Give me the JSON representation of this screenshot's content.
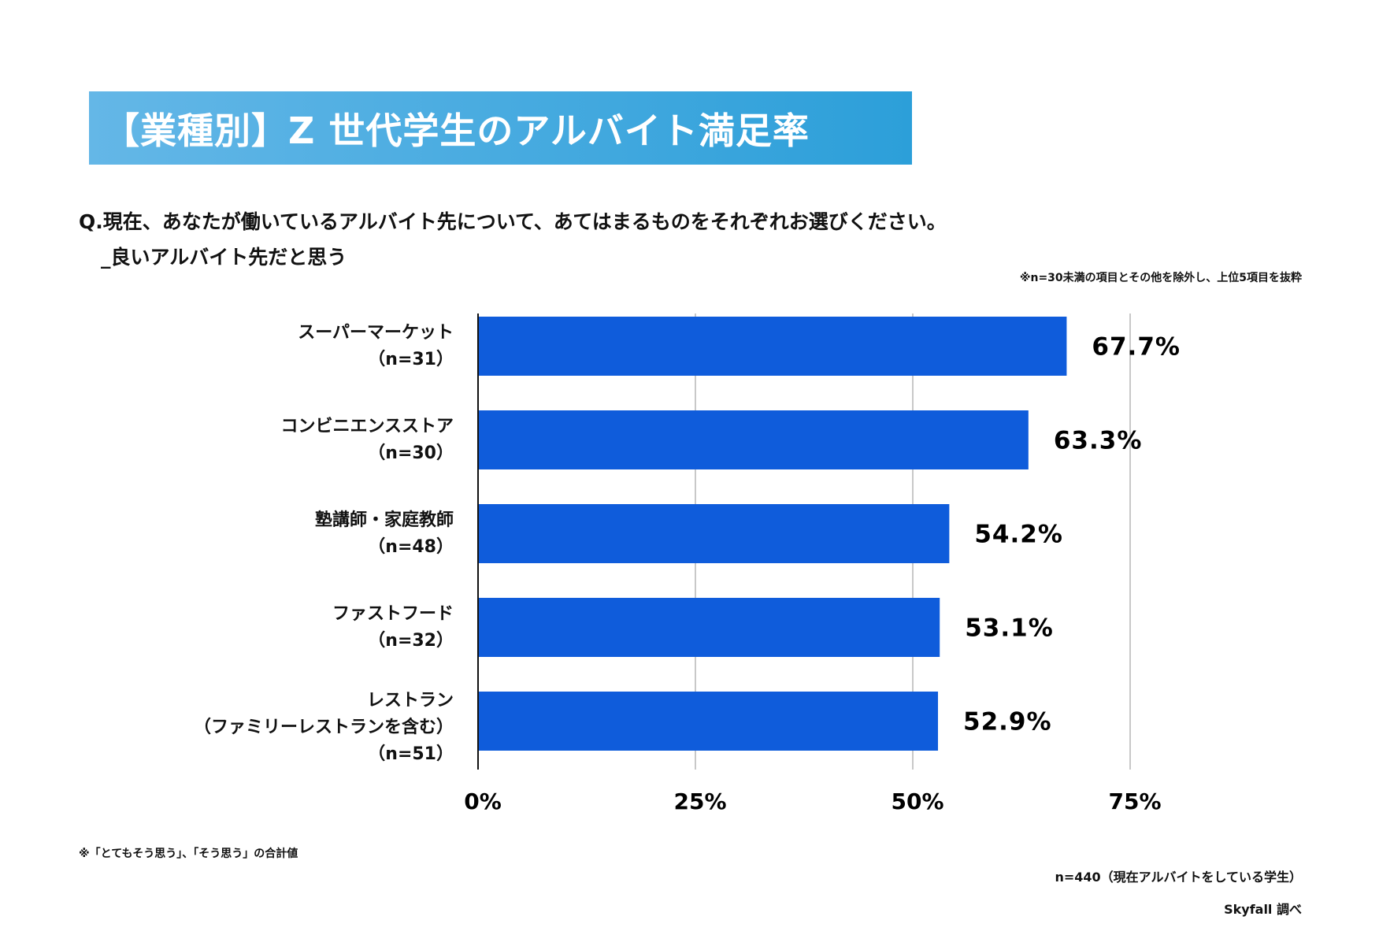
{
  "title": "【業種別】Z 世代学生のアルバイト満足率",
  "question_line1": "Q.現在、あなたが働いているアルバイト先について、あてはまるものをそれぞれお選びください。",
  "question_line2": "_良いアルバイト先だと思う",
  "note_top": "※n=30未満の項目とその他を除外し、上位5項目を抜粋",
  "footnote": "※「とてもそう思う」、「そう思う」の合計値",
  "sample": "n=440（現在アルバイトをしている学生）",
  "source": "Skyfall 調べ",
  "colors": {
    "bar": "#0f5cdb",
    "grid": "#c8c8c8",
    "title_start": "#64b7e7",
    "title_end": "#2c9fd9"
  },
  "chart_data": {
    "type": "bar",
    "orientation": "horizontal",
    "categories": [
      {
        "lines": [
          "スーパーマーケット",
          "（n=31）"
        ]
      },
      {
        "lines": [
          "コンビニエンスストア",
          "（n=30）"
        ]
      },
      {
        "lines": [
          "塾講師・家庭教師",
          "（n=48）"
        ]
      },
      {
        "lines": [
          "ファストフード",
          "（n=32）"
        ]
      },
      {
        "lines": [
          "レストラン",
          "（ファミリーレストランを含む）",
          "（n=51）"
        ]
      }
    ],
    "values": [
      67.7,
      63.3,
      54.2,
      53.1,
      52.9
    ],
    "value_labels": [
      "67.7%",
      "63.3%",
      "54.2%",
      "53.1%",
      "52.9%"
    ],
    "xlim": [
      0,
      75
    ],
    "ticks": [
      0,
      25,
      50,
      75
    ],
    "tick_labels": [
      "0%",
      "25%",
      "50%",
      "75%"
    ],
    "grid": true,
    "unit": "%"
  }
}
